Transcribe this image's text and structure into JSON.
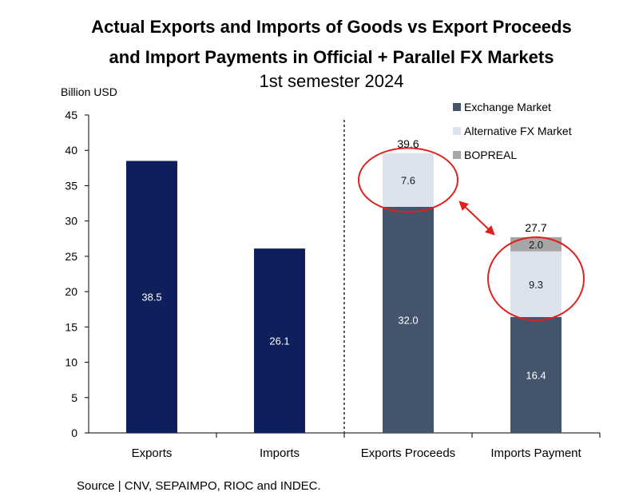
{
  "chart_data": {
    "type": "bar",
    "title_lines": [
      "Actual Exports and Imports of Goods vs Export Proceeds",
      "and Import Payments in Official + Parallel FX Markets"
    ],
    "subtitle": "1st semester 2024",
    "ylabel": "Billion USD",
    "ylim": [
      0,
      45
    ],
    "yticks": [
      0,
      5,
      10,
      15,
      20,
      25,
      30,
      35,
      40,
      45
    ],
    "categories": [
      "Exports",
      "Imports",
      "Exports Proceeds",
      "Imports Payment"
    ],
    "simple_bars": [
      {
        "category": "Exports",
        "value": 38.5,
        "label": "38.5",
        "color": "#0f1f5c"
      },
      {
        "category": "Imports",
        "value": 26.1,
        "label": "26.1",
        "color": "#0f1f5c"
      }
    ],
    "series": [
      {
        "name": "Exchange Market",
        "color": "#44546a",
        "values": [
          null,
          null,
          32.0,
          16.4
        ],
        "labels": [
          "",
          "",
          "32.0",
          "16.4"
        ]
      },
      {
        "name": "Alternative FX Market",
        "color": "#dde3ee",
        "values": [
          null,
          null,
          7.6,
          9.3
        ],
        "labels": [
          "",
          "",
          "7.6",
          "9.3"
        ]
      },
      {
        "name": "BOPREAL",
        "color": "#a6a6a6",
        "values": [
          null,
          null,
          0,
          2.0
        ],
        "labels": [
          "",
          "",
          "",
          "2.0"
        ]
      }
    ],
    "totals": [
      {
        "category": "Exports Proceeds",
        "value": 39.6,
        "label": "39.6"
      },
      {
        "category": "Imports Payment",
        "value": 27.7,
        "label": "27.7"
      }
    ],
    "legend_position": "top-right",
    "annotations": {
      "divider": "dashed line between Imports and Exports Proceeds",
      "circles_color": "#e0201c",
      "arrow": "double-headed arrow linking the two circled alternative-market segments"
    }
  },
  "source": "Source | CNV, SEPAIMPO, RIOC and INDEC."
}
